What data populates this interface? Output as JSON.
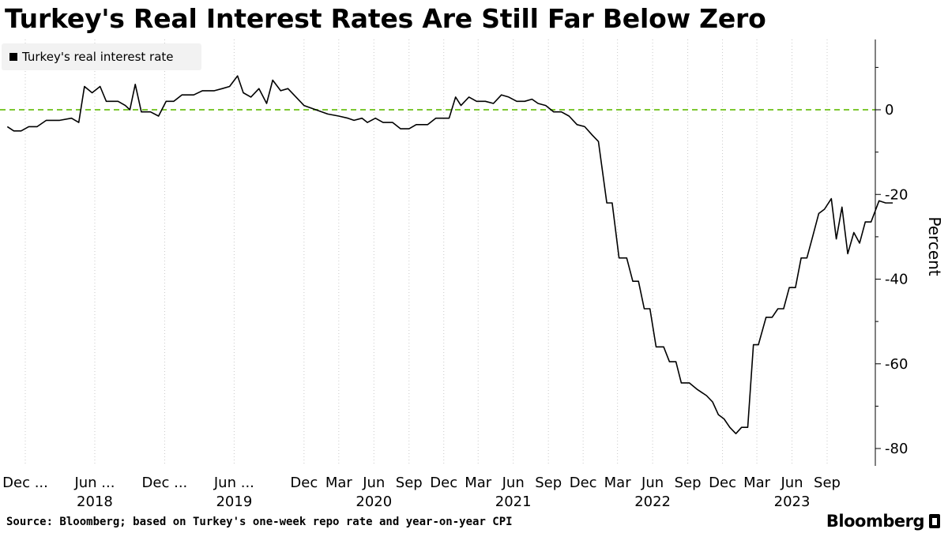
{
  "title": "Turkey's Real Interest Rates Are Still Far Below Zero",
  "legend": {
    "label": "Turkey's real interest rate",
    "color": "#000000"
  },
  "source": "Source: Bloomberg; based on Turkey's one-week repo rate and year-on-year CPI",
  "brand": "Bloomberg",
  "chart_data": {
    "type": "line",
    "title": "Turkey's Real Interest Rates Are Still Far Below Zero",
    "ylabel": "Percent",
    "ylim": [
      -84,
      16
    ],
    "yticks": [
      0,
      -20,
      -40,
      -60,
      -80
    ],
    "y_axis_position": "right",
    "grid": "vertical dotted",
    "reference_line": {
      "y": 0,
      "color": "#7dc832",
      "style": "dashed"
    },
    "legend": "top-left",
    "x_ticks": [
      {
        "date": "2017-12",
        "label": "Dec ..."
      },
      {
        "date": "2018-06",
        "label": "Jun ..."
      },
      {
        "date": "2018-12",
        "label": "Dec ..."
      },
      {
        "date": "2019-06",
        "label": "Jun ..."
      },
      {
        "date": "2019-12",
        "label": "Dec"
      },
      {
        "date": "2020-03",
        "label": "Mar"
      },
      {
        "date": "2020-06",
        "label": "Jun"
      },
      {
        "date": "2020-09",
        "label": "Sep"
      },
      {
        "date": "2020-12",
        "label": "Dec"
      },
      {
        "date": "2021-03",
        "label": "Mar"
      },
      {
        "date": "2021-06",
        "label": "Jun"
      },
      {
        "date": "2021-09",
        "label": "Sep"
      },
      {
        "date": "2021-12",
        "label": "Dec"
      },
      {
        "date": "2022-03",
        "label": "Mar"
      },
      {
        "date": "2022-06",
        "label": "Jun"
      },
      {
        "date": "2022-09",
        "label": "Sep"
      },
      {
        "date": "2022-12",
        "label": "Dec"
      },
      {
        "date": "2023-03",
        "label": "Mar"
      },
      {
        "date": "2023-06",
        "label": "Jun"
      },
      {
        "date": "2023-09",
        "label": "Sep"
      }
    ],
    "year_labels": [
      {
        "date": "2018-06",
        "label": "2018"
      },
      {
        "date": "2019-06",
        "label": "2019"
      },
      {
        "date": "2020-06",
        "label": "2020"
      },
      {
        "date": "2021-06",
        "label": "2021"
      },
      {
        "date": "2022-06",
        "label": "2022"
      },
      {
        "date": "2023-06",
        "label": "2023"
      }
    ],
    "series": [
      {
        "name": "Turkey's real interest rate",
        "color": "#000000",
        "points": [
          [
            "2017-10-15",
            -4
          ],
          [
            "2017-11-01",
            -5
          ],
          [
            "2017-11-20",
            -5
          ],
          [
            "2017-12-10",
            -4
          ],
          [
            "2018-01-01",
            -4
          ],
          [
            "2018-01-25",
            -2.5
          ],
          [
            "2018-03-01",
            -2.5
          ],
          [
            "2018-04-01",
            -2
          ],
          [
            "2018-04-20",
            -3
          ],
          [
            "2018-05-05",
            5.5
          ],
          [
            "2018-05-25",
            4
          ],
          [
            "2018-06-15",
            5.5
          ],
          [
            "2018-07-01",
            2
          ],
          [
            "2018-08-01",
            2
          ],
          [
            "2018-08-20",
            1
          ],
          [
            "2018-09-01",
            0
          ],
          [
            "2018-09-15",
            6
          ],
          [
            "2018-10-01",
            -0.5
          ],
          [
            "2018-10-25",
            -0.5
          ],
          [
            "2018-11-15",
            -1.5
          ],
          [
            "2018-12-05",
            2
          ],
          [
            "2018-12-25",
            2
          ],
          [
            "2019-01-15",
            3.5
          ],
          [
            "2019-02-15",
            3.5
          ],
          [
            "2019-03-10",
            4.5
          ],
          [
            "2019-04-10",
            4.5
          ],
          [
            "2019-05-01",
            5
          ],
          [
            "2019-05-20",
            5.5
          ],
          [
            "2019-06-10",
            8
          ],
          [
            "2019-06-25",
            4
          ],
          [
            "2019-07-15",
            3
          ],
          [
            "2019-08-05",
            5
          ],
          [
            "2019-08-25",
            1.5
          ],
          [
            "2019-09-10",
            7
          ],
          [
            "2019-10-01",
            4.5
          ],
          [
            "2019-10-20",
            5
          ],
          [
            "2019-11-10",
            3
          ],
          [
            "2019-12-01",
            1
          ],
          [
            "2020-01-01",
            0
          ],
          [
            "2020-02-01",
            -1
          ],
          [
            "2020-03-01",
            -1.5
          ],
          [
            "2020-03-25",
            -2
          ],
          [
            "2020-04-10",
            -2.5
          ],
          [
            "2020-05-01",
            -2
          ],
          [
            "2020-05-15",
            -3
          ],
          [
            "2020-06-05",
            -2
          ],
          [
            "2020-06-25",
            -3
          ],
          [
            "2020-07-20",
            -3
          ],
          [
            "2020-08-10",
            -4.5
          ],
          [
            "2020-09-01",
            -4.5
          ],
          [
            "2020-09-20",
            -3.5
          ],
          [
            "2020-10-20",
            -3.5
          ],
          [
            "2020-11-10",
            -2
          ],
          [
            "2020-12-15",
            -2
          ],
          [
            "2021-01-01",
            3
          ],
          [
            "2021-01-15",
            1
          ],
          [
            "2021-02-05",
            3
          ],
          [
            "2021-02-25",
            2
          ],
          [
            "2021-03-20",
            2
          ],
          [
            "2021-04-10",
            1.5
          ],
          [
            "2021-05-01",
            3.5
          ],
          [
            "2021-05-20",
            3
          ],
          [
            "2021-06-10",
            2
          ],
          [
            "2021-07-01",
            2
          ],
          [
            "2021-07-20",
            2.5
          ],
          [
            "2021-08-05",
            1.5
          ],
          [
            "2021-08-25",
            1
          ],
          [
            "2021-09-15",
            -0.5
          ],
          [
            "2021-10-05",
            -0.5
          ],
          [
            "2021-10-25",
            -1.5
          ],
          [
            "2021-11-15",
            -3.5
          ],
          [
            "2021-12-05",
            -4
          ],
          [
            "2021-12-25",
            -6
          ],
          [
            "2022-01-10",
            -7.5
          ],
          [
            "2022-02-01",
            -22
          ],
          [
            "2022-02-15",
            -22
          ],
          [
            "2022-03-05",
            -35
          ],
          [
            "2022-03-25",
            -35
          ],
          [
            "2022-04-10",
            -40.5
          ],
          [
            "2022-04-25",
            -40.5
          ],
          [
            "2022-05-10",
            -47
          ],
          [
            "2022-05-25",
            -47
          ],
          [
            "2022-06-10",
            -56
          ],
          [
            "2022-06-30",
            -56
          ],
          [
            "2022-07-15",
            -59.5
          ],
          [
            "2022-08-01",
            -59.5
          ],
          [
            "2022-08-15",
            -64.5
          ],
          [
            "2022-09-05",
            -64.5
          ],
          [
            "2022-09-25",
            -66
          ],
          [
            "2022-10-20",
            -67.5
          ],
          [
            "2022-11-05",
            -69
          ],
          [
            "2022-11-20",
            -72
          ],
          [
            "2022-12-05",
            -73
          ],
          [
            "2022-12-20",
            -75
          ],
          [
            "2023-01-05",
            -76.5
          ],
          [
            "2023-01-20",
            -75
          ],
          [
            "2023-02-05",
            -75
          ],
          [
            "2023-02-20",
            -55.5
          ],
          [
            "2023-03-05",
            -55.5
          ],
          [
            "2023-03-25",
            -49
          ],
          [
            "2023-04-10",
            -49
          ],
          [
            "2023-04-25",
            -47
          ],
          [
            "2023-05-10",
            -47
          ],
          [
            "2023-05-25",
            -42
          ],
          [
            "2023-06-10",
            -42
          ],
          [
            "2023-06-25",
            -35
          ],
          [
            "2023-07-10",
            -35
          ],
          [
            "2023-07-25",
            -30
          ],
          [
            "2023-08-10",
            -24.5
          ],
          [
            "2023-08-25",
            -23.5
          ],
          [
            "2023-09-12",
            -21
          ],
          [
            "2023-09-25",
            -30.5
          ],
          [
            "2023-10-10",
            -23
          ],
          [
            "2023-10-25",
            -34
          ],
          [
            "2023-11-10",
            -29
          ],
          [
            "2023-11-25",
            -31.5
          ],
          [
            "2023-12-10",
            -26.5
          ],
          [
            "2023-12-25",
            -26.5
          ],
          [
            "2024-01-15",
            -21.5
          ],
          [
            "2024-02-01",
            -22
          ],
          [
            "2024-02-20",
            -22
          ]
        ]
      }
    ]
  }
}
